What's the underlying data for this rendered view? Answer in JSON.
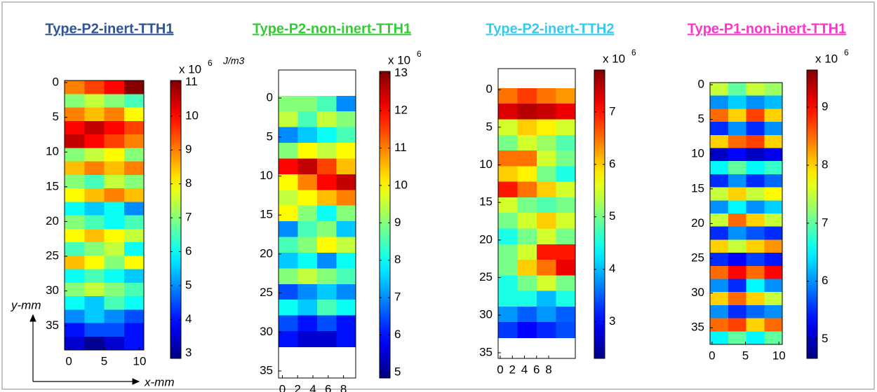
{
  "chart_data": [
    {
      "type": "heatmap",
      "title": "Type-P2-inert-TTH1",
      "title_color": "#2f5597",
      "xlim": [
        -0.6,
        10.6
      ],
      "xticks": [
        0,
        5,
        10
      ],
      "ylim": [
        -0.3,
        38.5
      ],
      "yticks": [
        0,
        5,
        10,
        15,
        20,
        25,
        30,
        35
      ],
      "x_label": "x-mm",
      "y_label": "y-mm",
      "colorbar_unit": "J/m3",
      "extent": {
        "x": [
          -0.6,
          10.6
        ],
        "y": [
          -0.3,
          38.5
        ]
      },
      "clim": [
        2.85,
        11.05
      ],
      "cticks": [
        3,
        4,
        5,
        6,
        7,
        8,
        9,
        10,
        11
      ],
      "colorbar_label": "x 10",
      "colorbar_exponent": "6",
      "z": [
        [
          9,
          9.5,
          10,
          11
        ],
        [
          7,
          7.5,
          7,
          6.5
        ],
        [
          9,
          8.5,
          9,
          8
        ],
        [
          10,
          10.5,
          10,
          9.5
        ],
        [
          10.5,
          10,
          9.5,
          9
        ],
        [
          7,
          7.5,
          8,
          7
        ],
        [
          8.5,
          9,
          8.5,
          9
        ],
        [
          7,
          6.5,
          7.5,
          7
        ],
        [
          8,
          8.5,
          9,
          8.5
        ],
        [
          6,
          5.5,
          6,
          5
        ],
        [
          7,
          6.5,
          6,
          6.5
        ],
        [
          8,
          8.5,
          8,
          7.5
        ],
        [
          6.5,
          7,
          7.5,
          6
        ],
        [
          8.5,
          8,
          7,
          8
        ],
        [
          6,
          6.5,
          6,
          5.5
        ],
        [
          7,
          7.5,
          7,
          6.5
        ],
        [
          6,
          5.5,
          6.5,
          6
        ],
        [
          5,
          5.5,
          5,
          4.5
        ],
        [
          4,
          4.5,
          4.5,
          4
        ],
        [
          3.5,
          3,
          3.5,
          4
        ]
      ]
    },
    {
      "type": "heatmap",
      "title": "Type-P2-non-inert-TTH1",
      "title_color": "#33cc33",
      "xlim": [
        -0.5,
        9.6
      ],
      "xticks": [
        0,
        2,
        4,
        6,
        8
      ],
      "ylim": [
        -3.6,
        35.9
      ],
      "yticks": [
        0,
        5,
        10,
        15,
        20,
        25,
        30,
        35
      ],
      "extent": {
        "x": [
          -0.5,
          9.6
        ],
        "y": [
          -0.3,
          31.9
        ]
      },
      "clim": [
        4.85,
        13.05
      ],
      "cticks": [
        5,
        6,
        7,
        8,
        9,
        10,
        11,
        12,
        13
      ],
      "colorbar_label": "x 10",
      "colorbar_exponent": "6",
      "z": [
        [
          9,
          9,
          8.5,
          7
        ],
        [
          9.5,
          8.5,
          9.5,
          9
        ],
        [
          7,
          7.5,
          8,
          8.5
        ],
        [
          9,
          10,
          9.5,
          10
        ],
        [
          12,
          12.5,
          11.5,
          10.5
        ],
        [
          10,
          11,
          12,
          12.5
        ],
        [
          9.5,
          10,
          10.5,
          11
        ],
        [
          10,
          9,
          8,
          9
        ],
        [
          7,
          8.5,
          9,
          7.5
        ],
        [
          8.5,
          9,
          10,
          9.5
        ],
        [
          7.5,
          8,
          7,
          8
        ],
        [
          9,
          9.5,
          9,
          8.5
        ],
        [
          6.5,
          7,
          7.5,
          7
        ],
        [
          8,
          7.5,
          8.5,
          8
        ],
        [
          6.5,
          6,
          6.5,
          6
        ],
        [
          6,
          5.5,
          5.5,
          6
        ]
      ]
    },
    {
      "type": "heatmap",
      "title": "Type-P2-inert-TTH2",
      "title_color": "#33ccee",
      "xlim": [
        -0.35,
        12.4
      ],
      "xticks": [
        0,
        2,
        4,
        6,
        8
      ],
      "ylim": [
        -2.8,
        35.75
      ],
      "yticks": [
        0,
        5,
        10,
        15,
        20,
        25,
        30,
        35
      ],
      "extent": {
        "x": [
          -0.35,
          12.4
        ],
        "y": [
          -0.2,
          33
        ]
      },
      "clim": [
        2.3,
        7.8
      ],
      "cticks": [
        3,
        4,
        5,
        6,
        7
      ],
      "colorbar_label": "x 10",
      "colorbar_exponent": "6",
      "z": [
        [
          6.5,
          6.8,
          6.5,
          6.3
        ],
        [
          7.3,
          7.5,
          7.4,
          7.2
        ],
        [
          5.5,
          6,
          5.8,
          5.5
        ],
        [
          5,
          5.5,
          5.2,
          4.8
        ],
        [
          6.5,
          6.5,
          5.5,
          5
        ],
        [
          6,
          5.8,
          5,
          4.5
        ],
        [
          7,
          6.5,
          6,
          5.5
        ],
        [
          5.5,
          5,
          4.8,
          5
        ],
        [
          5,
          5.5,
          6,
          5.5
        ],
        [
          4.5,
          5,
          5.5,
          5
        ],
        [
          5,
          5.5,
          7,
          7
        ],
        [
          5,
          6,
          6.5,
          7.2
        ],
        [
          4.5,
          5,
          5.5,
          5
        ],
        [
          4.5,
          4.5,
          4,
          4.5
        ],
        [
          3.8,
          3.5,
          3.8,
          3.5
        ],
        [
          3.3,
          3,
          3.2,
          3.4
        ]
      ]
    },
    {
      "type": "heatmap",
      "title": "Type-P1-non-inert-TTH1",
      "title_color": "#ff33cc",
      "xlim": [
        -0.3,
        10.5
      ],
      "xticks": [
        0,
        5,
        10
      ],
      "ylim": [
        -0.3,
        37.4
      ],
      "yticks": [
        0,
        5,
        10,
        15,
        20,
        25,
        30,
        35
      ],
      "extent": {
        "x": [
          -0.3,
          10.5
        ],
        "y": [
          -0.3,
          37.4
        ]
      },
      "clim": [
        4.67,
        9.64
      ],
      "cticks": [
        5,
        6,
        7,
        8,
        9
      ],
      "colorbar_label": "x 10",
      "colorbar_exponent": "6",
      "z": [
        [
          7.5,
          7,
          7.5,
          7.3
        ],
        [
          6,
          6.3,
          6,
          6.2
        ],
        [
          8.5,
          8,
          8.7,
          8
        ],
        [
          5.5,
          6,
          5.5,
          6
        ],
        [
          8,
          8.5,
          8.7,
          8
        ],
        [
          5,
          5.3,
          5,
          5.2
        ],
        [
          6.5,
          7,
          6.5,
          6.8
        ],
        [
          5.5,
          6,
          5.5,
          5.8
        ],
        [
          7.5,
          8,
          7.5,
          7.8
        ],
        [
          6,
          6.5,
          6,
          6.3
        ],
        [
          7.5,
          8.5,
          8,
          7.5
        ],
        [
          5.5,
          6,
          5.7,
          5.5
        ],
        [
          8,
          7.5,
          8,
          8.3
        ],
        [
          5.5,
          5.3,
          5.6,
          5.4
        ],
        [
          8.5,
          9,
          8.5,
          9
        ],
        [
          6,
          5.5,
          6.5,
          6
        ],
        [
          8,
          8.5,
          8,
          7.5
        ],
        [
          6,
          5.5,
          5.8,
          6
        ],
        [
          8.5,
          8.7,
          8,
          8.5
        ],
        [
          6.5,
          7,
          6.5,
          7
        ]
      ]
    }
  ]
}
